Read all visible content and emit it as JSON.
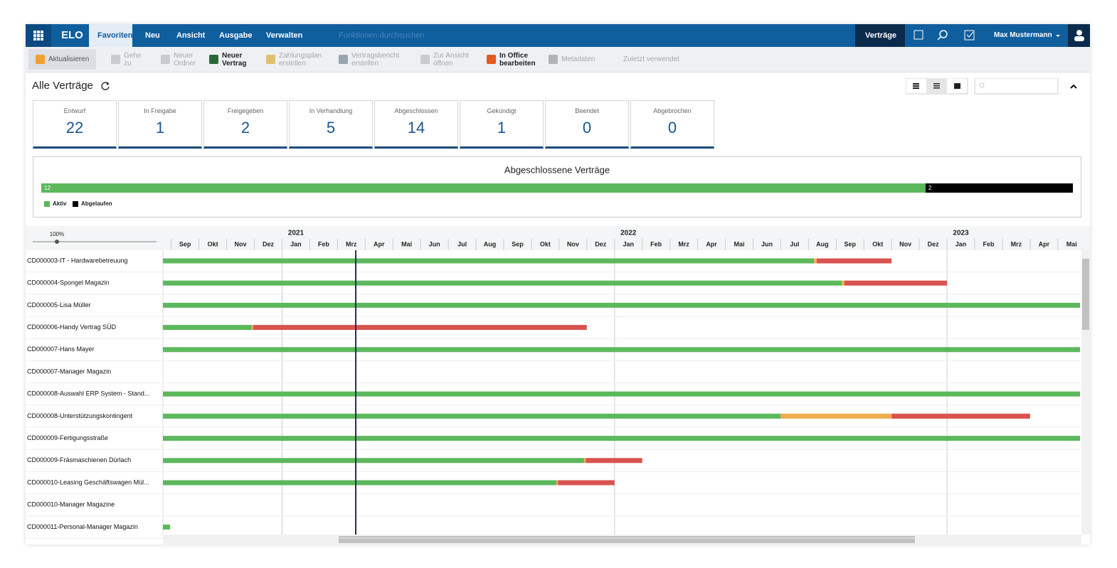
{
  "nav": {
    "logo": "ELO",
    "tabs": [
      "Favoriten",
      "Neu",
      "Ansicht",
      "Ausgabe",
      "Verwalten"
    ],
    "search_placeholder": "Funktionen durchsuchen",
    "context": "Verträge",
    "user": "Max Mustermann"
  },
  "toolbar": {
    "buttons": [
      [
        "Aktualisieren"
      ],
      [
        "Gehe",
        "zu"
      ],
      [
        "Neuer",
        "Ordner"
      ],
      [
        "Neuer",
        "Vertrag"
      ],
      [
        "Zahlungsplan",
        "erstellen"
      ],
      [
        "Vertragsbericht",
        "erstellen"
      ],
      [
        "Zur Ansicht",
        "öffnen"
      ],
      [
        "In Office",
        "bearbeiten"
      ],
      [
        "Metadaten"
      ],
      [
        "Zuletzt verwendet"
      ]
    ]
  },
  "view": {
    "title": "Alle Verträge"
  },
  "status_cards": [
    {
      "label": "Entwurf",
      "count": 22
    },
    {
      "label": "In Freigabe",
      "count": 1
    },
    {
      "label": "Freigegeben",
      "count": 2
    },
    {
      "label": "In Verhandlung",
      "count": 5
    },
    {
      "label": "Abgeschlossen",
      "count": 14
    },
    {
      "label": "Gekündigt",
      "count": 1
    },
    {
      "label": "Beendet",
      "count": 0
    },
    {
      "label": "Abgebrochen",
      "count": 0
    }
  ],
  "chart_data": {
    "type": "stacked-bar",
    "title": "Abgeschlossene Verträge",
    "xlim": [
      0,
      14
    ],
    "series": [
      {
        "name": "Aktiv",
        "color": "#5cb85c",
        "values": [
          12
        ]
      },
      {
        "name": "Abgelaufen",
        "color": "#000000",
        "values": [
          2
        ]
      }
    ]
  },
  "timeline": {
    "zoom": "100%",
    "years": [
      "2021",
      "2022",
      "2023"
    ],
    "months": [
      "Sep",
      "Okt",
      "Nov",
      "Dez",
      "Jan",
      "Feb",
      "Mrz",
      "Apr",
      "Mai",
      "Jun",
      "Jul",
      "Aug",
      "Sep",
      "Okt",
      "Nov",
      "Dez",
      "Jan",
      "Feb",
      "Mrz",
      "Apr",
      "Mai",
      "Jun",
      "Jul",
      "Aug",
      "Sep",
      "Okt",
      "Nov",
      "Dez",
      "Jan",
      "Feb",
      "Mrz",
      "Apr",
      "Mai"
    ],
    "xlim": [
      -0.3,
      32.8
    ],
    "today": 6.66,
    "rows": [
      {
        "label": "CD000003-IT - Hardwarebetreuung",
        "segments": [
          {
            "start": -0.3,
            "end": 23.2,
            "color": "#5cb85c"
          },
          {
            "start": 23.2,
            "end": 23.3,
            "color": "#f0ad4e"
          },
          {
            "start": 23.3,
            "end": 26.0,
            "color": "#d9534f"
          }
        ]
      },
      {
        "label": "CD000004-Spongel Magazin",
        "segments": [
          {
            "start": -0.3,
            "end": 24.2,
            "color": "#5cb85c"
          },
          {
            "start": 24.2,
            "end": 24.3,
            "color": "#f0ad4e"
          },
          {
            "start": 24.3,
            "end": 28.0,
            "color": "#d9534f"
          }
        ]
      },
      {
        "label": "CD000005-Lisa Müller",
        "segments": [
          {
            "start": -0.3,
            "end": 32.8,
            "color": "#5cb85c"
          }
        ]
      },
      {
        "label": "CD000006-Handy Vertrag SÜD",
        "segments": [
          {
            "start": -0.3,
            "end": 2.9,
            "color": "#5cb85c"
          },
          {
            "start": 2.9,
            "end": 2.96,
            "color": "#f0ad4e"
          },
          {
            "start": 2.96,
            "end": 15.0,
            "color": "#d9534f"
          }
        ]
      },
      {
        "label": "CD000007-Hans Mayer",
        "segments": [
          {
            "start": -0.3,
            "end": 32.8,
            "color": "#5cb85c"
          }
        ]
      },
      {
        "label": "CD000007-Manager Magazin",
        "segments": []
      },
      {
        "label": "CD000008-Auswahl ERP System - Stand...",
        "segments": [
          {
            "start": -0.3,
            "end": 32.8,
            "color": "#5cb85c"
          }
        ]
      },
      {
        "label": "CD000008-Unterstützungskontingent",
        "segments": [
          {
            "start": -0.3,
            "end": 22.0,
            "color": "#5cb85c"
          },
          {
            "start": 22.0,
            "end": 26.0,
            "color": "#f0ad4e"
          },
          {
            "start": 26.0,
            "end": 31.0,
            "color": "#d9534f"
          }
        ]
      },
      {
        "label": "CD000009-Fertigungsstraße",
        "segments": [
          {
            "start": -0.3,
            "end": 32.8,
            "color": "#5cb85c"
          }
        ]
      },
      {
        "label": "CD000009-Fräsmaschienen Dürlach",
        "segments": [
          {
            "start": -0.3,
            "end": 14.9,
            "color": "#5cb85c"
          },
          {
            "start": 14.9,
            "end": 14.96,
            "color": "#f0ad4e"
          },
          {
            "start": 14.96,
            "end": 17.0,
            "color": "#d9534f"
          }
        ]
      },
      {
        "label": "CD000010-Leasing Geschäftswagen Mül...",
        "segments": [
          {
            "start": -0.3,
            "end": 13.9,
            "color": "#5cb85c"
          },
          {
            "start": 13.9,
            "end": 13.96,
            "color": "#f0ad4e"
          },
          {
            "start": 13.96,
            "end": 16.0,
            "color": "#d9534f"
          }
        ]
      },
      {
        "label": "CD000010-Manager Magazine",
        "segments": []
      },
      {
        "label": "CD000011-Personal-Manager Magazin",
        "segments": [
          {
            "start": -0.3,
            "end": -0.04,
            "color": "#5cb85c"
          }
        ]
      }
    ]
  }
}
